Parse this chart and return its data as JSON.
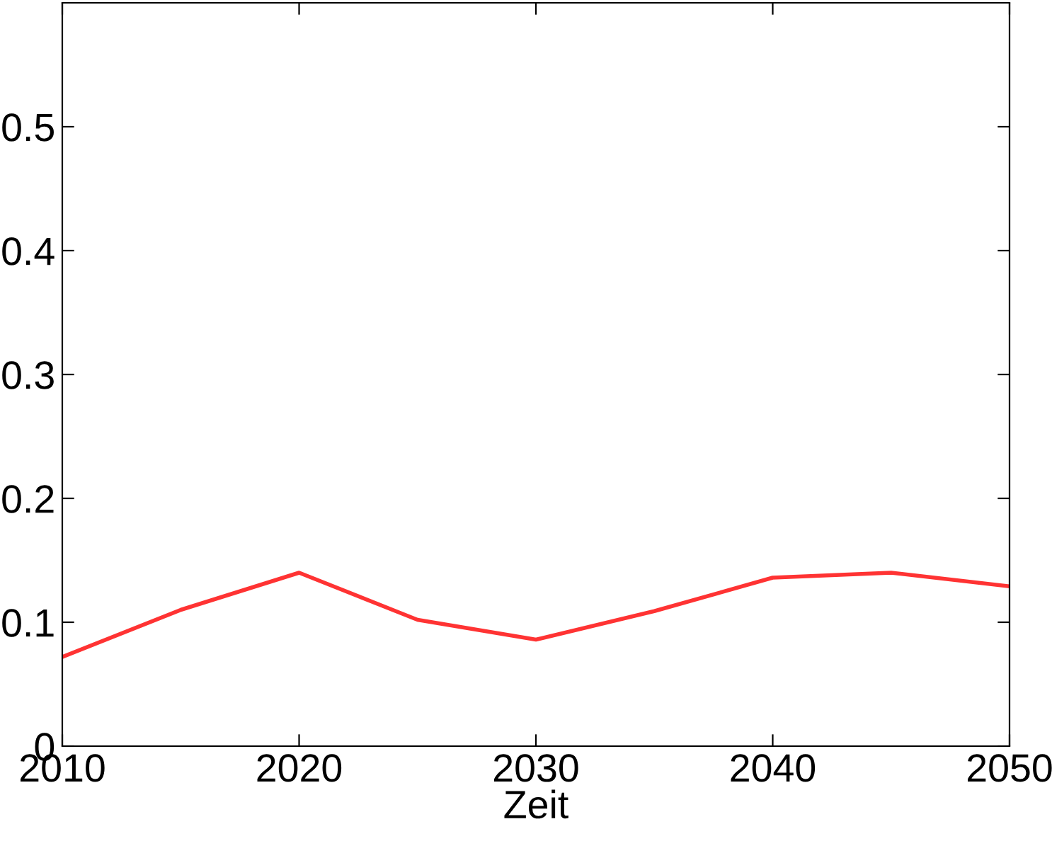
{
  "chart_data": {
    "type": "line",
    "xlabel": "Zeit",
    "x": [
      2010,
      2015,
      2020,
      2025,
      2030,
      2035,
      2040,
      2045,
      2050
    ],
    "series": [
      {
        "color": "#ff3333",
        "values": [
          0.072,
          0.11,
          0.14,
          0.102,
          0.086,
          0.109,
          0.136,
          0.14,
          0.129
        ]
      }
    ],
    "xlim": [
      2010,
      2050
    ],
    "xticks": [
      2010,
      2020,
      2030,
      2040,
      2050
    ],
    "ylim": [
      0,
      0.6
    ],
    "yticks": [
      0,
      0.1,
      0.2,
      0.3,
      0.4,
      0.5
    ],
    "grid": false,
    "legend": false,
    "marker": "none",
    "line_style": "solid"
  }
}
